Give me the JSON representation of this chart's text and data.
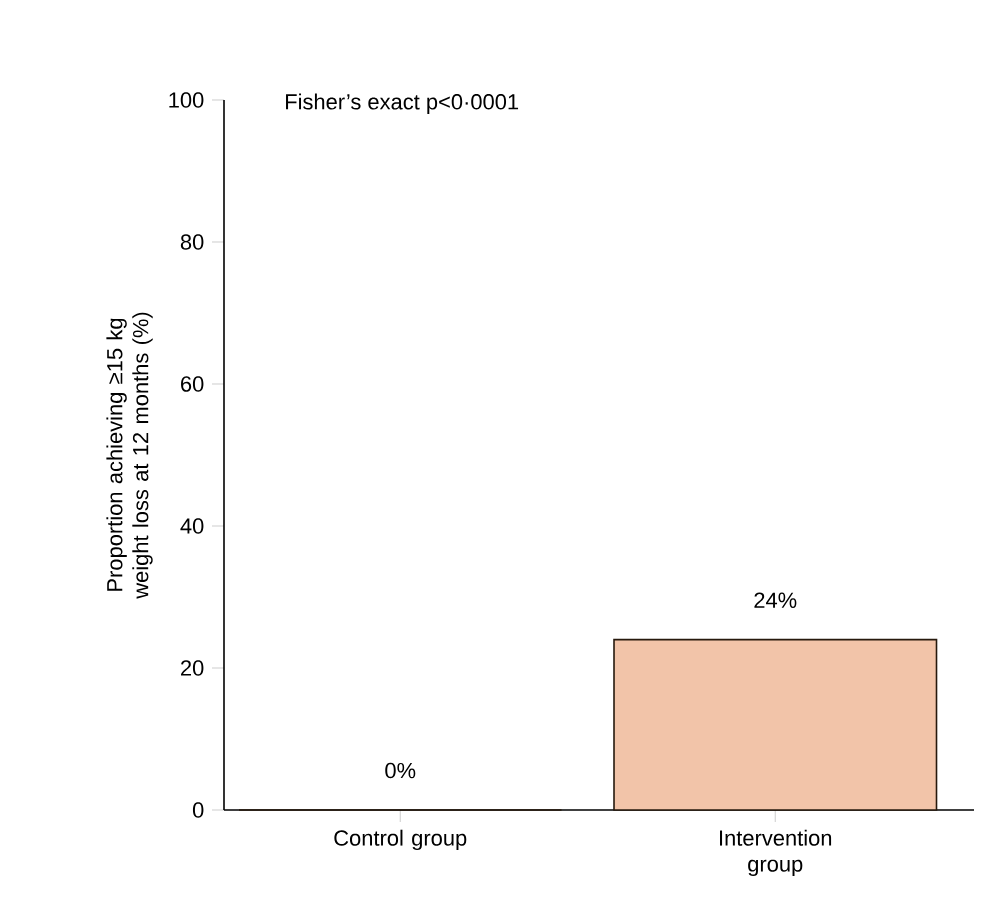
{
  "chart_data": {
    "type": "bar",
    "ylabel": "Proportion achieving ≥15 kg weight loss at 12 months (%)",
    "categories": [
      "Control group",
      "Intervention group"
    ],
    "values": [
      0,
      24
    ],
    "value_labels": [
      "0%",
      "24%"
    ],
    "colors": [
      "#f2c4a9",
      "#f2c4a9"
    ],
    "ylim": [
      0,
      100
    ],
    "yticks": [
      0,
      20,
      40,
      60,
      80,
      100
    ],
    "annotations": [
      "Fisher’s exact p<0·0001"
    ]
  }
}
